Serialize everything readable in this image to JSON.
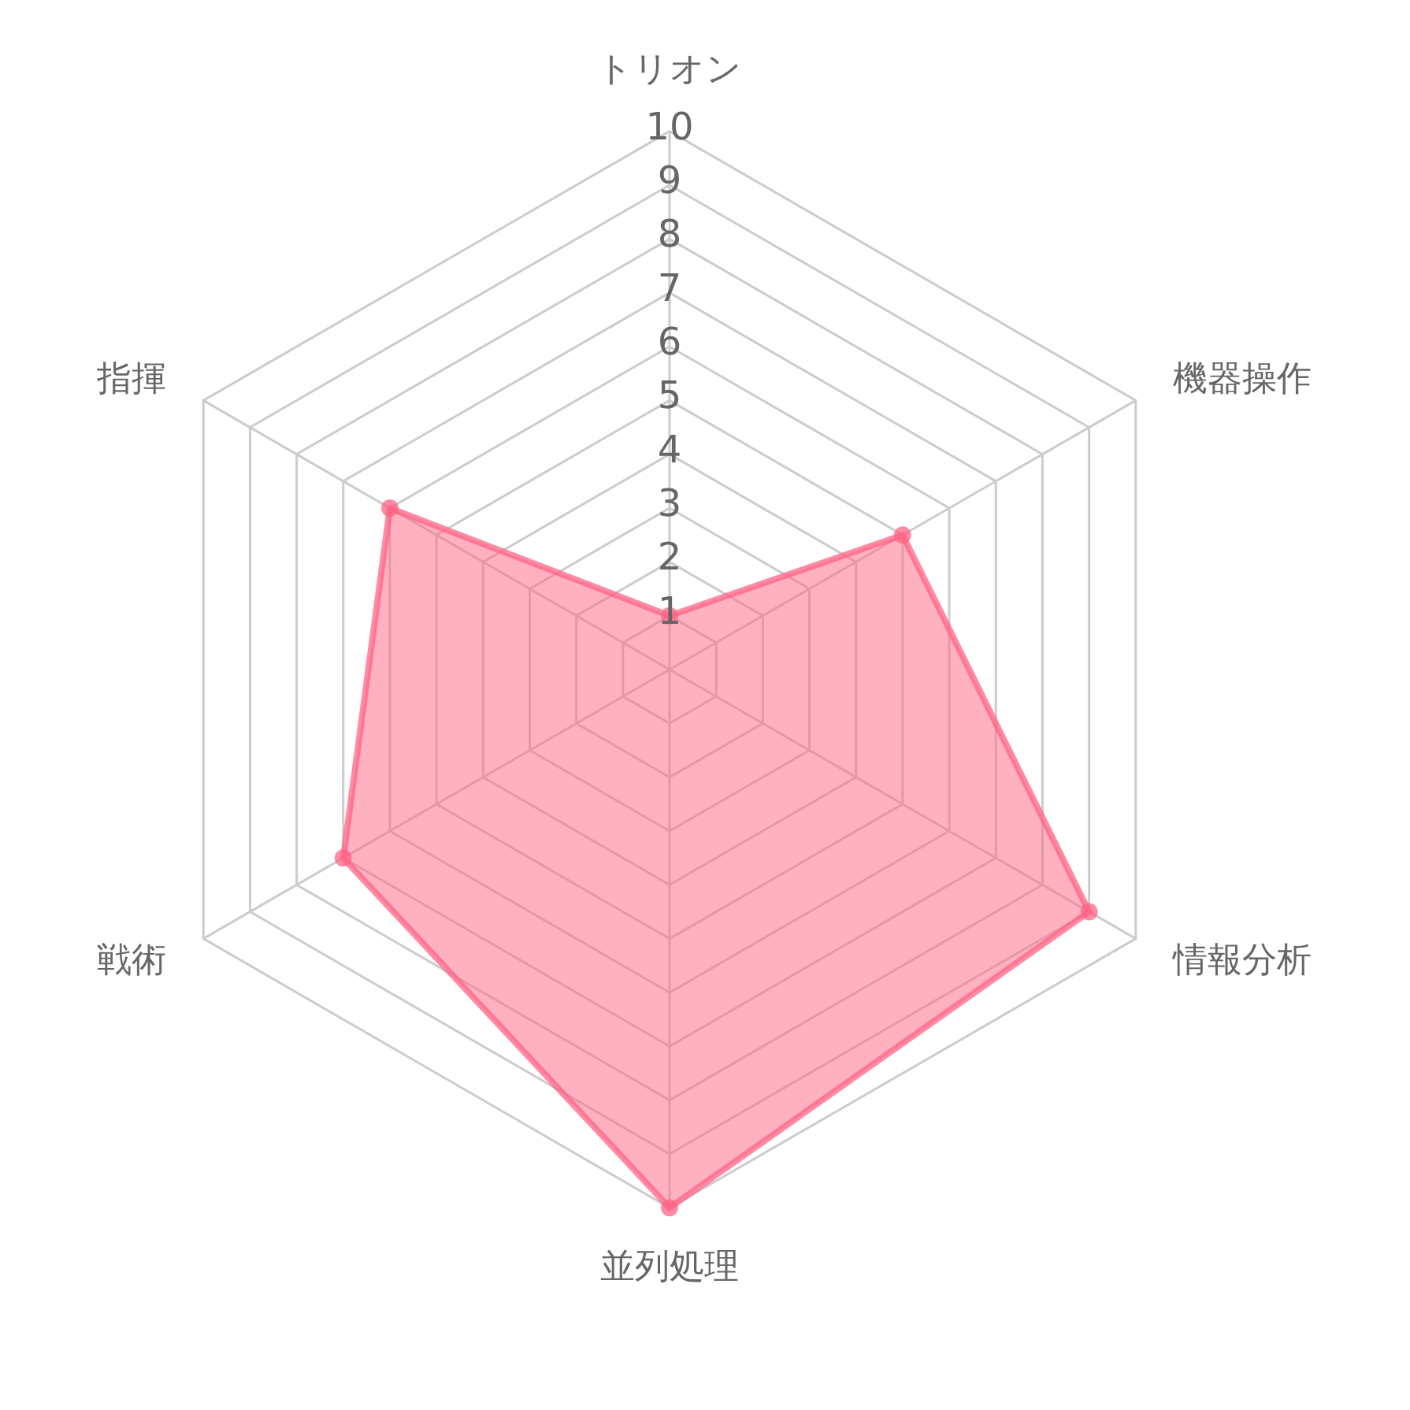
{
  "chart_data": {
    "type": "radar",
    "categories": [
      "トリオン",
      "機器操作",
      "情報分析",
      "並列処理",
      "戦術",
      "指揮"
    ],
    "series": [
      {
        "color": "#ff6384",
        "values": [
          1,
          5,
          9,
          10,
          7,
          6
        ]
      }
    ],
    "ylim": [
      0,
      10
    ],
    "yticks": [
      1,
      2,
      3,
      4,
      5,
      6,
      7,
      8,
      9,
      10
    ],
    "grid": true,
    "marker": "circle"
  }
}
